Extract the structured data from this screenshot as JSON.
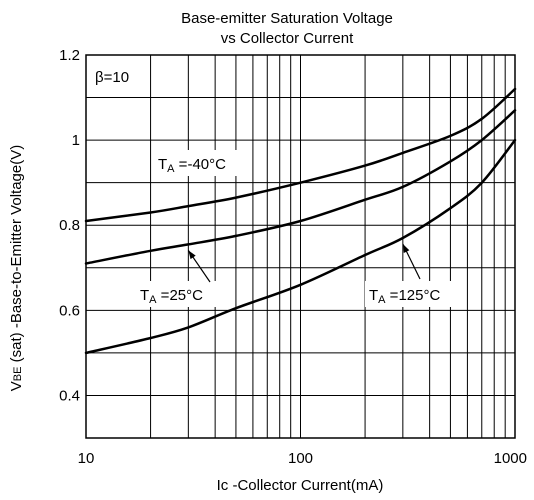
{
  "chart_data": {
    "type": "line",
    "title_line1": "Base-emitter Saturation Voltage",
    "title_line2": "vs Collector Current",
    "xlabel": "Ic -Collector Current(mA)",
    "ylabel_prefix": "V",
    "ylabel_sub": "BE",
    "ylabel_rest": " (sat) -Base-to-Emitter  Voltage(V)",
    "x_scale": "log",
    "xlim": [
      10,
      1000
    ],
    "ylim": [
      0.3,
      1.2
    ],
    "grid": true,
    "x_tick_labels": [
      {
        "value": 10,
        "label": "10"
      },
      {
        "value": 100,
        "label": "100"
      },
      {
        "value": 1000,
        "label": "1000"
      }
    ],
    "y_tick_labels": [
      {
        "value": 1.2,
        "label": "1.2"
      },
      {
        "value": 1.0,
        "label": "1"
      },
      {
        "value": 0.8,
        "label": "0.8"
      },
      {
        "value": 0.6,
        "label": "0.6"
      },
      {
        "value": 0.4,
        "label": "0.4"
      }
    ],
    "beta_label": "β=10",
    "series": [
      {
        "name": "T_A =-40°C",
        "label_main": "T",
        "label_sub": "A",
        "label_rest": " =-40°C",
        "x": [
          10,
          20,
          30,
          50,
          100,
          200,
          300,
          500,
          700,
          1000
        ],
        "values": [
          0.81,
          0.83,
          0.845,
          0.865,
          0.9,
          0.94,
          0.97,
          1.01,
          1.05,
          1.12
        ]
      },
      {
        "name": "T_A =25°C",
        "label_main": "T",
        "label_sub": "A",
        "label_rest": " =25°C",
        "x": [
          10,
          20,
          30,
          50,
          100,
          200,
          300,
          500,
          700,
          1000
        ],
        "values": [
          0.71,
          0.74,
          0.755,
          0.775,
          0.81,
          0.86,
          0.89,
          0.95,
          1.0,
          1.07
        ]
      },
      {
        "name": "T_A =125°C",
        "label_main": "T",
        "label_sub": "A",
        "label_rest": " =125°C",
        "x": [
          10,
          20,
          30,
          50,
          100,
          200,
          300,
          500,
          700,
          1000
        ],
        "values": [
          0.5,
          0.535,
          0.56,
          0.605,
          0.66,
          0.73,
          0.77,
          0.84,
          0.9,
          1.0
        ]
      }
    ]
  }
}
